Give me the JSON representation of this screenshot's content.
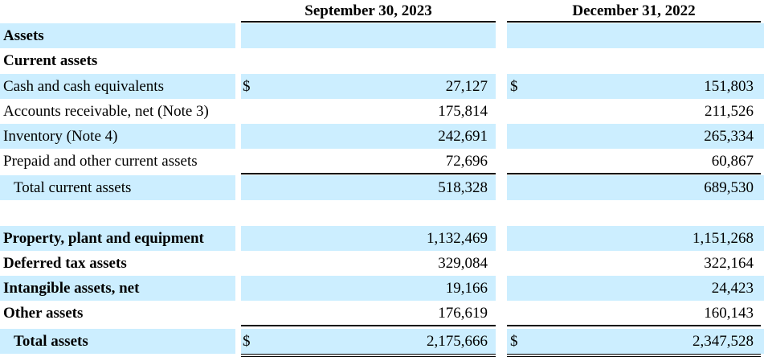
{
  "headers": {
    "col1": "September 30, 2023",
    "col2": "December 31, 2022"
  },
  "rows": [
    {
      "label": "Assets",
      "bold": true,
      "shade": true,
      "cur1": "",
      "val1": "",
      "cur2": "",
      "val2": ""
    },
    {
      "label": "Current assets",
      "bold": true,
      "shade": false,
      "cur1": "",
      "val1": "",
      "cur2": "",
      "val2": ""
    },
    {
      "label": "Cash and cash equivalents",
      "bold": false,
      "shade": true,
      "cur1": "$",
      "val1": "27,127",
      "cur2": "$",
      "val2": "151,803"
    },
    {
      "label": "Accounts receivable, net (Note 3)",
      "bold": false,
      "shade": false,
      "cur1": "",
      "val1": "175,814",
      "cur2": "",
      "val2": "211,526"
    },
    {
      "label": "Inventory (Note 4)",
      "bold": false,
      "shade": true,
      "cur1": "",
      "val1": "242,691",
      "cur2": "",
      "val2": "265,334"
    },
    {
      "label": "Prepaid and other current assets",
      "bold": false,
      "shade": false,
      "cur1": "",
      "val1": "72,696",
      "cur2": "",
      "val2": "60,867"
    },
    {
      "label": "Total current assets",
      "bold": false,
      "shade": true,
      "indent": true,
      "cur1": "",
      "val1": "518,328",
      "cur2": "",
      "val2": "689,530"
    },
    {
      "label": "Property, plant and equipment",
      "bold": true,
      "shade": true,
      "cur1": "",
      "val1": "1,132,469",
      "cur2": "",
      "val2": "1,151,268"
    },
    {
      "label": "Deferred tax assets",
      "bold": true,
      "shade": false,
      "cur1": "",
      "val1": "329,084",
      "cur2": "",
      "val2": "322,164"
    },
    {
      "label": "Intangible assets, net",
      "bold": true,
      "shade": true,
      "cur1": "",
      "val1": "19,166",
      "cur2": "",
      "val2": "24,423"
    },
    {
      "label": "Other assets",
      "bold": true,
      "shade": false,
      "cur1": "",
      "val1": "176,619",
      "cur2": "",
      "val2": "160,143"
    },
    {
      "label": "Total assets",
      "bold": true,
      "shade": true,
      "indent": true,
      "cur1": "$",
      "val1": "2,175,666",
      "cur2": "$",
      "val2": "2,347,528"
    }
  ]
}
